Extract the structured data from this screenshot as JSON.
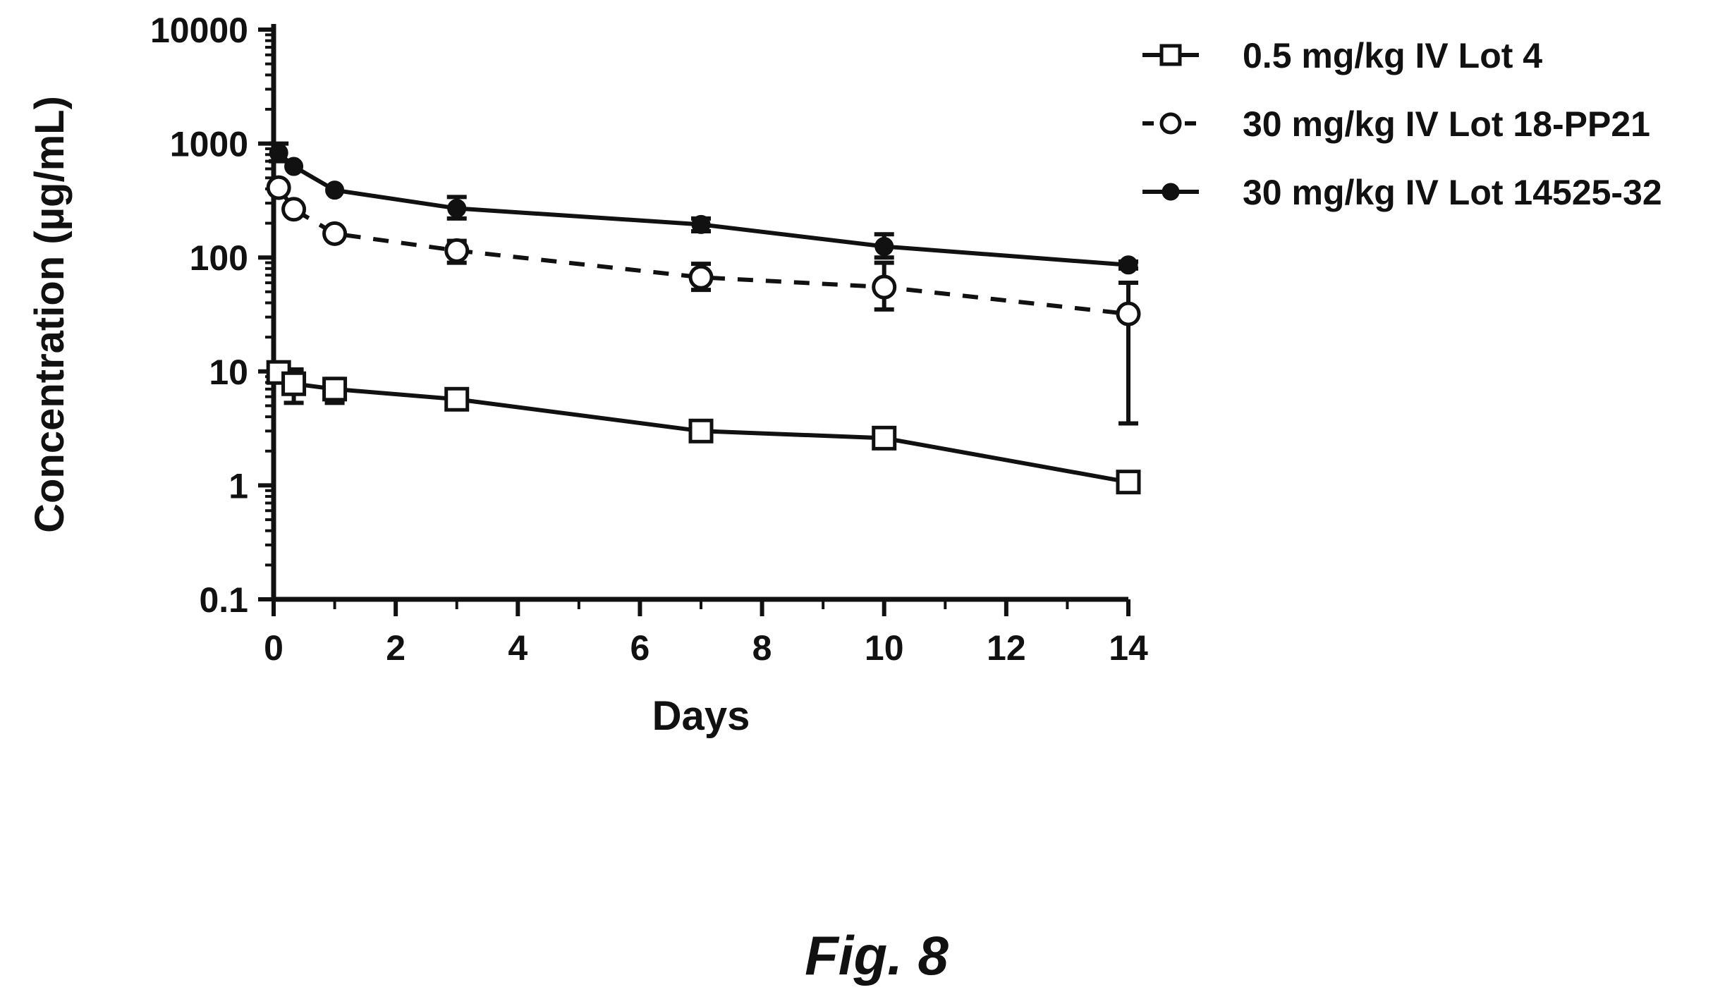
{
  "figure_caption": "Fig. 8",
  "chart_data": {
    "type": "line",
    "title": "",
    "xlabel": "Days",
    "ylabel": "Concentration (µg/mL)",
    "xlim": [
      0,
      14
    ],
    "ylim": [
      0.1,
      10000
    ],
    "y_scale": "log",
    "x_ticks": [
      0,
      2,
      4,
      6,
      8,
      10,
      12,
      14
    ],
    "x_tick_labels": [
      "0",
      "2",
      "4",
      "6",
      "8",
      "10",
      "12",
      "14"
    ],
    "y_ticks": [
      0.1,
      1,
      10,
      100,
      1000,
      10000
    ],
    "y_tick_labels": [
      "0.1",
      "1",
      "10",
      "100",
      "1000",
      "10000"
    ],
    "grid": false,
    "legend_position": "top-right",
    "series": [
      {
        "name": "0.5 mg/kg IV Lot 4",
        "marker": "open-square",
        "line_style": "solid",
        "color": "#111111",
        "x": [
          0.083,
          0.33,
          1,
          3,
          7,
          10,
          14
        ],
        "y": [
          9.8,
          7.8,
          7.0,
          5.7,
          3.0,
          2.6,
          1.07
        ],
        "err_low": [
          9.8,
          5.3,
          5.3,
          5.7,
          3.0,
          2.3,
          1.07
        ],
        "err_high": [
          9.8,
          10.4,
          8.6,
          5.7,
          3.0,
          2.9,
          1.07
        ]
      },
      {
        "name": "30 mg/kg IV Lot 18-PP21",
        "marker": "open-circle",
        "line_style": "dashed",
        "color": "#111111",
        "x": [
          0.083,
          0.33,
          1,
          3,
          7,
          10,
          14
        ],
        "y": [
          410,
          265,
          162,
          115,
          67,
          55,
          32
        ],
        "err_low": [
          410,
          265,
          162,
          90,
          52,
          35,
          3.5
        ],
        "err_high": [
          410,
          265,
          162,
          140,
          88,
          90,
          60
        ]
      },
      {
        "name": "30 mg/kg IV Lot 14525-32",
        "marker": "filled-circle",
        "line_style": "solid",
        "color": "#111111",
        "x": [
          0.083,
          0.33,
          1,
          3,
          7,
          10,
          14
        ],
        "y": [
          830,
          630,
          390,
          270,
          195,
          125,
          86
        ],
        "err_low": [
          700,
          630,
          390,
          220,
          170,
          100,
          80
        ],
        "err_high": [
          1000,
          630,
          390,
          340,
          220,
          160,
          92
        ]
      }
    ]
  }
}
